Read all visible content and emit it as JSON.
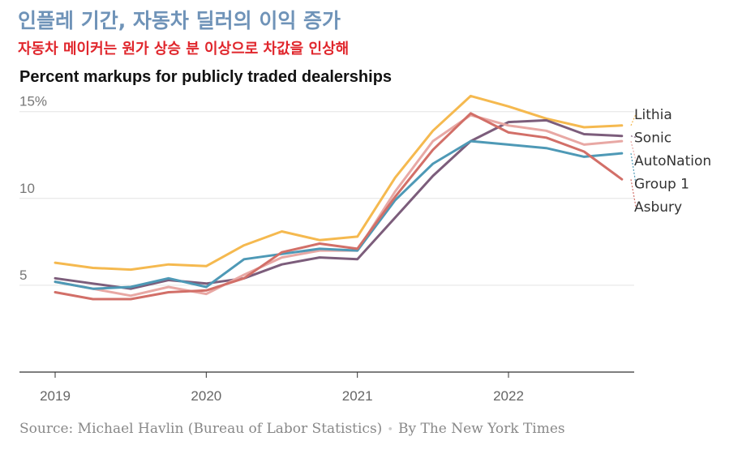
{
  "header": {
    "headline": "인플레 기간, 자동차 딜러의 이익 증가",
    "subheadline": "자동차 메이커는 원가 상승 분 이상으로 차값을 인상해",
    "chart_title": "Percent markups for publicly traded dealerships"
  },
  "footer": {
    "source": "Source: Michael Havlin (Bureau of Labor Statistics)",
    "separator": "•",
    "credit": "By The New York Times"
  },
  "chart_data": {
    "type": "line",
    "title": "Percent markups for publicly traded dealerships",
    "xlabel": "",
    "ylabel": "",
    "x": [
      2019.0,
      2019.25,
      2019.5,
      2019.75,
      2020.0,
      2020.25,
      2020.5,
      2020.75,
      2021.0,
      2021.25,
      2021.5,
      2021.75,
      2022.0,
      2022.25,
      2022.5,
      2022.75
    ],
    "x_ticks": [
      2019,
      2020,
      2021,
      2022
    ],
    "x_tick_labels": [
      "2019",
      "2020",
      "2021",
      "2022"
    ],
    "y_ticks": [
      5,
      10,
      15
    ],
    "y_tick_labels": [
      "5",
      "10",
      "15%"
    ],
    "xlim": [
      2018.75,
      2022.83
    ],
    "ylim": [
      0,
      16.2
    ],
    "grid": true,
    "legend_position": "right",
    "series": [
      {
        "name": "Lithia",
        "color": "#f5b94f",
        "values": [
          6.3,
          6.0,
          5.9,
          6.2,
          6.1,
          7.3,
          8.1,
          7.6,
          7.8,
          11.2,
          13.9,
          15.9,
          15.3,
          14.6,
          14.1,
          14.2
        ]
      },
      {
        "name": "Sonic",
        "color": "#7c5d7b",
        "values": [
          5.4,
          5.1,
          4.8,
          5.3,
          5.1,
          5.4,
          6.2,
          6.6,
          6.5,
          8.9,
          11.3,
          13.3,
          14.4,
          14.5,
          13.7,
          13.6
        ]
      },
      {
        "name": "AutoNation",
        "color": "#e8a8a4",
        "values": [
          5.2,
          4.8,
          4.4,
          4.9,
          4.5,
          5.6,
          6.6,
          7.0,
          7.0,
          10.4,
          13.3,
          14.8,
          14.2,
          13.9,
          13.1,
          13.3
        ]
      },
      {
        "name": "Group 1",
        "color": "#4e99b6",
        "values": [
          5.2,
          4.8,
          4.9,
          5.4,
          4.9,
          6.5,
          6.8,
          7.1,
          7.0,
          9.9,
          12.0,
          13.3,
          13.1,
          12.9,
          12.4,
          12.6
        ]
      },
      {
        "name": "Asbury",
        "color": "#d26f68",
        "values": [
          4.6,
          4.2,
          4.2,
          4.6,
          4.7,
          5.4,
          6.9,
          7.4,
          7.1,
          10.1,
          12.8,
          14.9,
          13.8,
          13.5,
          12.7,
          11.1
        ]
      }
    ]
  }
}
